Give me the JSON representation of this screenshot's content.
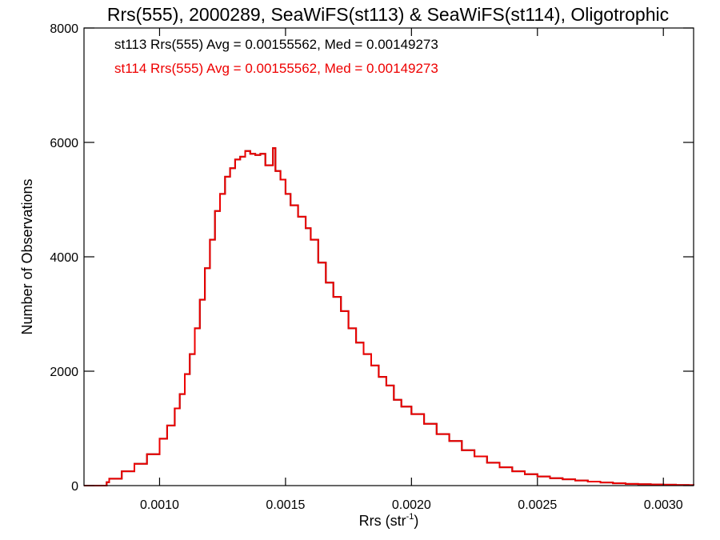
{
  "chart_data": {
    "type": "line",
    "title": "Rrs(555), 2000289, SeaWiFS(st113) & SeaWiFS(st114), Oligotrophic",
    "xlabel_main": "Rrs (str",
    "xlabel_sup": "-1",
    "xlabel_end": ")",
    "ylabel": "Number of Observations",
    "xlim": [
      0.0007,
      0.00312
    ],
    "ylim": [
      0,
      8000
    ],
    "x_ticks": [
      0.001,
      0.0015,
      0.002,
      0.0025,
      0.003
    ],
    "x_tick_labels": [
      "0.0010",
      "0.0015",
      "0.0020",
      "0.0025",
      "0.0030"
    ],
    "y_ticks": [
      0,
      2000,
      4000,
      6000,
      8000
    ],
    "y_tick_labels": [
      "0",
      "2000",
      "4000",
      "6000",
      "8000"
    ],
    "annotations": [
      {
        "text": "st113 Rrs(555) Avg = 0.00155562, Med = 0.00149273",
        "color": "#000000"
      },
      {
        "text": "st114 Rrs(555) Avg = 0.00155562, Med = 0.00149273",
        "color": "#ee0000"
      }
    ],
    "series": [
      {
        "name": "st113",
        "color": "#000000",
        "x": [
          0.0007,
          0.00078,
          0.00079,
          0.0008,
          0.00085,
          0.0009,
          0.00095,
          0.001,
          0.00103,
          0.00106,
          0.00108,
          0.0011,
          0.00112,
          0.00114,
          0.00116,
          0.00118,
          0.0012,
          0.00122,
          0.00124,
          0.00126,
          0.00128,
          0.0013,
          0.00132,
          0.00134,
          0.00136,
          0.00138,
          0.0014,
          0.00142,
          0.00144,
          0.00145,
          0.00146,
          0.00148,
          0.0015,
          0.00152,
          0.00155,
          0.00158,
          0.0016,
          0.00163,
          0.00166,
          0.00169,
          0.00172,
          0.00175,
          0.00178,
          0.00181,
          0.00184,
          0.00187,
          0.0019,
          0.00193,
          0.00196,
          0.002,
          0.00205,
          0.0021,
          0.00215,
          0.0022,
          0.00225,
          0.0023,
          0.00235,
          0.0024,
          0.00245,
          0.0025,
          0.00255,
          0.0026,
          0.00265,
          0.0027,
          0.00275,
          0.0028,
          0.00285,
          0.0029,
          0.00295,
          0.003,
          0.00305,
          0.0031,
          0.00312
        ],
        "y": [
          0,
          0,
          60,
          120,
          250,
          380,
          550,
          820,
          1050,
          1350,
          1600,
          1950,
          2300,
          2750,
          3250,
          3800,
          4300,
          4800,
          5100,
          5400,
          5550,
          5700,
          5750,
          5850,
          5800,
          5780,
          5800,
          5600,
          5600,
          5900,
          5500,
          5350,
          5100,
          4900,
          4700,
          4500,
          4300,
          3900,
          3550,
          3300,
          3050,
          2750,
          2500,
          2300,
          2100,
          1900,
          1750,
          1500,
          1380,
          1250,
          1080,
          900,
          780,
          620,
          510,
          400,
          320,
          250,
          200,
          160,
          130,
          110,
          90,
          70,
          55,
          40,
          30,
          25,
          20,
          15,
          10,
          8,
          5
        ]
      },
      {
        "name": "st114",
        "color": "#ee0000",
        "x": [
          0.0007,
          0.00078,
          0.00079,
          0.0008,
          0.00085,
          0.0009,
          0.00095,
          0.001,
          0.00103,
          0.00106,
          0.00108,
          0.0011,
          0.00112,
          0.00114,
          0.00116,
          0.00118,
          0.0012,
          0.00122,
          0.00124,
          0.00126,
          0.00128,
          0.0013,
          0.00132,
          0.00134,
          0.00136,
          0.00138,
          0.0014,
          0.00142,
          0.00144,
          0.00145,
          0.00146,
          0.00148,
          0.0015,
          0.00152,
          0.00155,
          0.00158,
          0.0016,
          0.00163,
          0.00166,
          0.00169,
          0.00172,
          0.00175,
          0.00178,
          0.00181,
          0.00184,
          0.00187,
          0.0019,
          0.00193,
          0.00196,
          0.002,
          0.00205,
          0.0021,
          0.00215,
          0.0022,
          0.00225,
          0.0023,
          0.00235,
          0.0024,
          0.00245,
          0.0025,
          0.00255,
          0.0026,
          0.00265,
          0.0027,
          0.00275,
          0.0028,
          0.00285,
          0.0029,
          0.00295,
          0.003,
          0.00305,
          0.0031,
          0.00312
        ],
        "y": [
          0,
          0,
          60,
          120,
          250,
          380,
          550,
          820,
          1050,
          1350,
          1600,
          1950,
          2300,
          2750,
          3250,
          3800,
          4300,
          4800,
          5100,
          5400,
          5550,
          5700,
          5750,
          5850,
          5800,
          5780,
          5800,
          5600,
          5600,
          5900,
          5500,
          5350,
          5100,
          4900,
          4700,
          4500,
          4300,
          3900,
          3550,
          3300,
          3050,
          2750,
          2500,
          2300,
          2100,
          1900,
          1750,
          1500,
          1380,
          1250,
          1080,
          900,
          780,
          620,
          510,
          400,
          320,
          250,
          200,
          160,
          130,
          110,
          90,
          70,
          55,
          40,
          30,
          25,
          20,
          15,
          10,
          8,
          5
        ]
      }
    ]
  }
}
